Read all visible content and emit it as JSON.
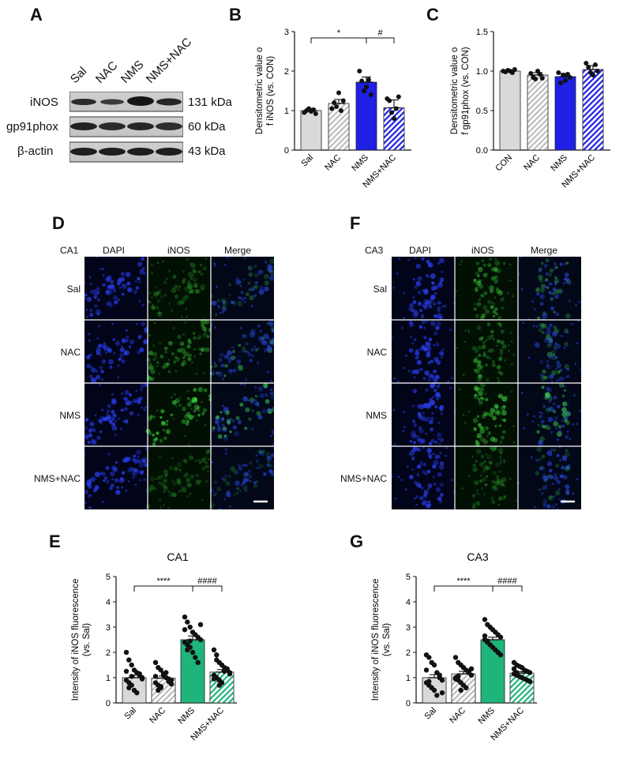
{
  "panels": {
    "A": "A",
    "B": "B",
    "C": "C",
    "D": "D",
    "E": "E",
    "F": "F",
    "G": "G"
  },
  "western": {
    "lanes": [
      "Sal",
      "NAC",
      "NMS",
      "NMS+NAC"
    ],
    "rows": [
      {
        "protein": "iNOS",
        "size": "131 kDa"
      },
      {
        "protein": "gp91phox",
        "size": "60 kDa"
      },
      {
        "protein": "β-actin",
        "size": "43 kDa"
      }
    ]
  },
  "micro": {
    "columns": [
      "DAPI",
      "iNOS",
      "Merge"
    ],
    "rows": [
      "Sal",
      "NAC",
      "NMS",
      "NMS+NAC"
    ],
    "region_D": "CA1",
    "region_F": "CA3"
  },
  "colors": {
    "gray": "#d9d9d9",
    "blue": "#1f1fe6",
    "green": "#1fb47a"
  },
  "chart_data": [
    {
      "id": "B",
      "type": "bar",
      "ylabel": "Densitometric value of iNOS (vs. CON)",
      "categories": [
        "Sal",
        "NAC",
        "NMS",
        "NMS+NAC"
      ],
      "values": [
        1.0,
        1.18,
        1.72,
        1.07
      ],
      "errors": [
        0.05,
        0.1,
        0.13,
        0.2
      ],
      "ylim": [
        0,
        3
      ],
      "yticks": [
        "0",
        "1",
        "2",
        "3"
      ],
      "fills": [
        "gray",
        "gray-hatch",
        "blue",
        "blue-hatch"
      ],
      "points": [
        [
          0.95,
          1.0,
          1.05,
          0.98,
          1.02,
          0.92
        ],
        [
          1.05,
          1.2,
          1.1,
          1.45,
          1.0,
          1.25
        ],
        [
          2.0,
          1.75,
          1.5,
          1.6,
          1.78,
          1.4
        ],
        [
          1.3,
          1.25,
          0.95,
          0.8,
          1.05,
          1.35
        ]
      ],
      "significance": [
        {
          "from": 0,
          "to": 2,
          "label": "*"
        },
        {
          "from": 2,
          "to": 3,
          "label": "#"
        }
      ]
    },
    {
      "id": "C",
      "type": "bar",
      "ylabel": "Densitometric value of gp91phox (vs. CON)",
      "categories": [
        "CON",
        "NAC",
        "NMS",
        "NMS+NAC"
      ],
      "values": [
        1.0,
        0.95,
        0.93,
        1.02
      ],
      "errors": [
        0.01,
        0.03,
        0.04,
        0.05
      ],
      "ylim": [
        0,
        1.5
      ],
      "yticks": [
        "0.0",
        "0.5",
        "1.0",
        "1.5"
      ],
      "fills": [
        "gray",
        "gray-hatch",
        "blue",
        "blue-hatch"
      ],
      "points": [
        [
          1.0,
          0.99,
          1.01,
          1.0,
          0.98,
          1.02
        ],
        [
          0.97,
          0.92,
          0.9,
          1.0,
          0.96,
          0.91
        ],
        [
          0.98,
          0.85,
          0.95,
          0.88,
          0.96,
          0.92
        ],
        [
          1.1,
          1.05,
          0.98,
          0.95,
          1.08,
          1.0
        ]
      ],
      "significance": []
    },
    {
      "id": "E",
      "type": "bar",
      "title": "CA1",
      "ylabel": "Intensity of iNOS fluorescence (vs. Sal)",
      "categories": [
        "Sal",
        "NAC",
        "NMS",
        "NMS+NAC"
      ],
      "values": [
        1.0,
        0.98,
        2.5,
        1.22
      ],
      "errors": [
        0.1,
        0.08,
        0.15,
        0.1
      ],
      "ylim": [
        0,
        5
      ],
      "yticks": [
        "0",
        "1",
        "2",
        "3",
        "4",
        "5"
      ],
      "fills": [
        "gray",
        "gray-hatch",
        "green",
        "green-hatch"
      ],
      "points": [
        [
          2.0,
          1.7,
          1.5,
          1.3,
          1.2,
          1.1,
          1.0,
          0.9,
          0.8,
          0.7,
          0.5,
          0.4,
          1.15,
          0.95,
          1.25,
          0.6,
          1.05
        ],
        [
          1.6,
          1.4,
          1.3,
          1.15,
          1.0,
          0.95,
          0.9,
          0.8,
          0.7,
          0.6,
          1.1,
          1.2,
          0.85,
          0.75,
          1.05,
          0.5,
          0.65
        ],
        [
          3.4,
          3.2,
          3.0,
          2.8,
          2.7,
          2.6,
          2.5,
          2.4,
          2.3,
          2.2,
          2.0,
          1.8,
          1.6,
          3.1,
          2.9,
          2.1,
          2.45
        ],
        [
          2.1,
          1.9,
          1.6,
          1.5,
          1.4,
          1.3,
          1.2,
          1.1,
          1.0,
          0.9,
          0.8,
          1.25,
          1.35,
          1.15,
          0.95,
          1.7,
          0.7
        ]
      ],
      "significance": [
        {
          "from": 0,
          "to": 2,
          "label": "****"
        },
        {
          "from": 2,
          "to": 3,
          "label": "####"
        }
      ]
    },
    {
      "id": "G",
      "type": "bar",
      "title": "CA3",
      "ylabel": "Intensity of iNOS fluorescence (vs. Sal)",
      "categories": [
        "Sal",
        "NAC",
        "NMS",
        "NMS+NAC"
      ],
      "values": [
        1.0,
        1.15,
        2.5,
        1.18
      ],
      "errors": [
        0.12,
        0.1,
        0.1,
        0.06
      ],
      "ylim": [
        0,
        5
      ],
      "yticks": [
        "0",
        "1",
        "2",
        "3",
        "4",
        "5"
      ],
      "fills": [
        "gray",
        "gray-hatch",
        "green",
        "green-hatch"
      ],
      "points": [
        [
          1.9,
          1.8,
          1.6,
          1.5,
          1.2,
          1.0,
          0.9,
          0.8,
          0.7,
          0.6,
          0.5,
          0.3,
          1.1,
          0.4,
          1.3,
          0.85
        ],
        [
          1.8,
          1.6,
          1.5,
          1.4,
          1.3,
          1.2,
          1.1,
          1.0,
          0.9,
          0.8,
          0.7,
          0.6,
          1.25,
          1.35,
          0.95,
          1.05,
          0.5
        ],
        [
          3.3,
          3.1,
          3.0,
          2.9,
          2.8,
          2.7,
          2.6,
          2.5,
          2.4,
          2.3,
          2.2,
          2.1,
          2.0,
          1.9,
          2.65,
          2.45
        ],
        [
          1.6,
          1.5,
          1.45,
          1.4,
          1.3,
          1.25,
          1.2,
          1.15,
          1.1,
          1.05,
          1.0,
          0.95,
          0.9,
          0.85,
          1.35,
          1.2
        ]
      ],
      "significance": [
        {
          "from": 0,
          "to": 2,
          "label": "****"
        },
        {
          "from": 2,
          "to": 3,
          "label": "####"
        }
      ]
    }
  ]
}
